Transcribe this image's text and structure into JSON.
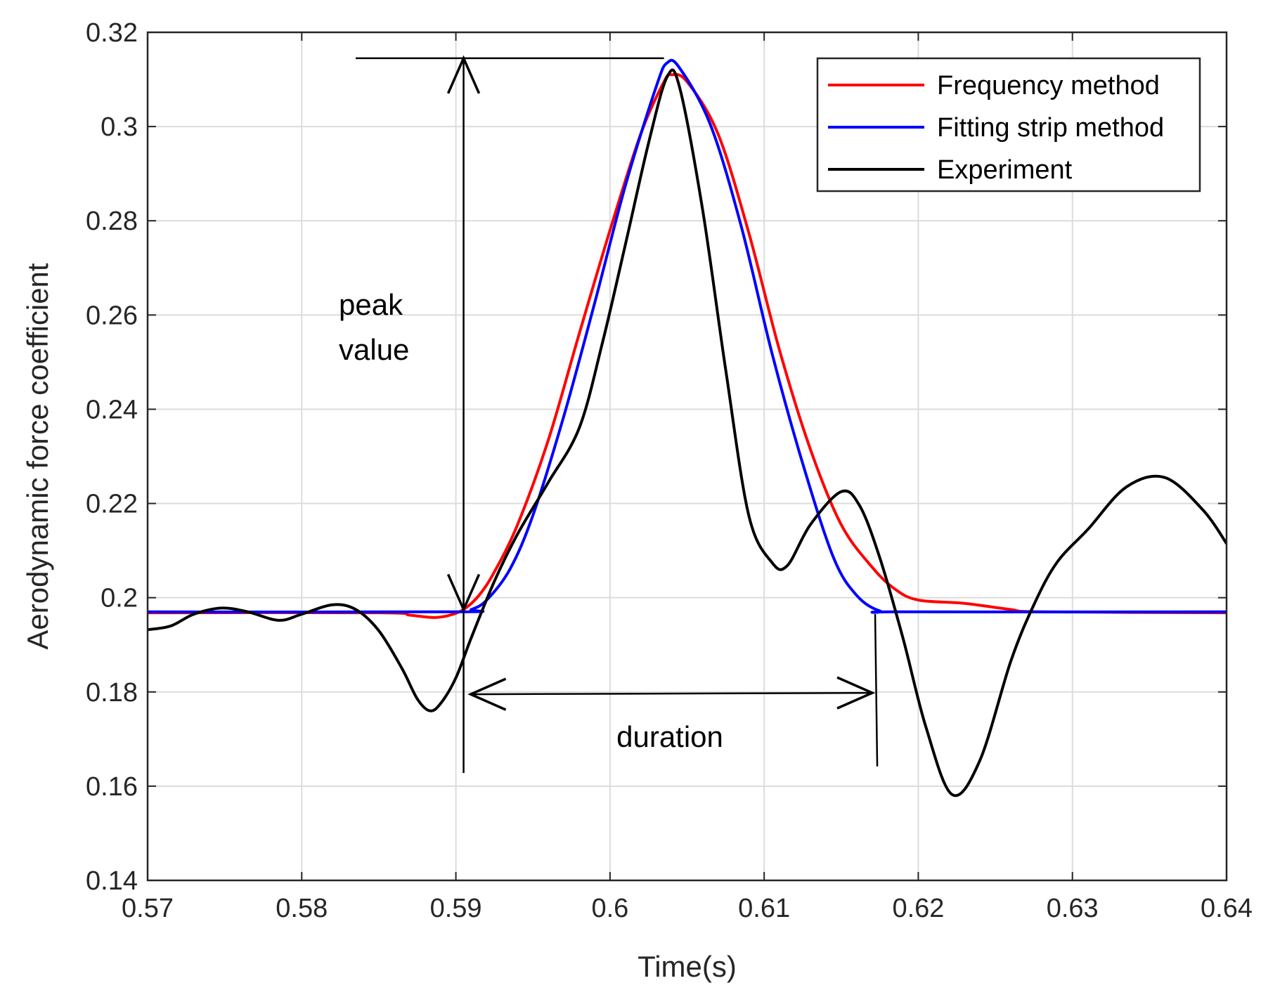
{
  "chart_data": {
    "type": "line",
    "xlabel": "Time(s)",
    "ylabel": "Aerodynamic force coefficient",
    "xlim": [
      0.57,
      0.64
    ],
    "ylim": [
      0.14,
      0.32
    ],
    "x_ticks": [
      0.57,
      0.58,
      0.59,
      0.6,
      0.61,
      0.62,
      0.63,
      0.64
    ],
    "x_tick_labels": [
      "0.57",
      "0.58",
      "0.59",
      "0.6",
      "0.61",
      "0.62",
      "0.63",
      "0.64"
    ],
    "y_ticks": [
      0.14,
      0.16,
      0.18,
      0.2,
      0.22,
      0.24,
      0.26,
      0.28,
      0.3,
      0.32
    ],
    "y_tick_labels": [
      "0.14",
      "0.16",
      "0.18",
      "0.2",
      "0.22",
      "0.24",
      "0.26",
      "0.28",
      "0.3",
      "0.32"
    ],
    "grid": true,
    "legend_position": "top-right",
    "series": [
      {
        "name": "Frequency method",
        "color": "#ff0000",
        "points": [
          [
            0.57,
            0.1968
          ],
          [
            0.585,
            0.1968
          ],
          [
            0.587,
            0.1963
          ],
          [
            0.5885,
            0.1958
          ],
          [
            0.5895,
            0.1962
          ],
          [
            0.5905,
            0.1975
          ],
          [
            0.5915,
            0.2005
          ],
          [
            0.5925,
            0.2055
          ],
          [
            0.594,
            0.2155
          ],
          [
            0.596,
            0.2335
          ],
          [
            0.598,
            0.256
          ],
          [
            0.6,
            0.278
          ],
          [
            0.602,
            0.2985
          ],
          [
            0.6035,
            0.3095
          ],
          [
            0.604,
            0.311
          ],
          [
            0.605,
            0.3095
          ],
          [
            0.607,
            0.2985
          ],
          [
            0.609,
            0.2775
          ],
          [
            0.611,
            0.2525
          ],
          [
            0.613,
            0.2315
          ],
          [
            0.615,
            0.2155
          ],
          [
            0.617,
            0.2065
          ],
          [
            0.6185,
            0.2018
          ],
          [
            0.62,
            0.1995
          ],
          [
            0.623,
            0.1988
          ],
          [
            0.626,
            0.1975
          ],
          [
            0.628,
            0.197
          ],
          [
            0.64,
            0.1968
          ]
        ]
      },
      {
        "name": "Fitting strip method",
        "color": "#0000ff",
        "points": [
          [
            0.57,
            0.197
          ],
          [
            0.59,
            0.197
          ],
          [
            0.591,
            0.1975
          ],
          [
            0.592,
            0.1995
          ],
          [
            0.5935,
            0.206
          ],
          [
            0.595,
            0.2175
          ],
          [
            0.597,
            0.2385
          ],
          [
            0.599,
            0.2625
          ],
          [
            0.601,
            0.2875
          ],
          [
            0.603,
            0.3085
          ],
          [
            0.6037,
            0.3135
          ],
          [
            0.6045,
            0.3125
          ],
          [
            0.6065,
            0.3005
          ],
          [
            0.6085,
            0.279
          ],
          [
            0.6105,
            0.252
          ],
          [
            0.6125,
            0.2285
          ],
          [
            0.6145,
            0.2085
          ],
          [
            0.616,
            0.2005
          ],
          [
            0.6175,
            0.1972
          ],
          [
            0.619,
            0.197
          ],
          [
            0.64,
            0.197
          ]
        ]
      },
      {
        "name": "Experiment",
        "color": "#000000",
        "points": [
          [
            0.57,
            0.1932
          ],
          [
            0.5715,
            0.194
          ],
          [
            0.573,
            0.1965
          ],
          [
            0.5748,
            0.1978
          ],
          [
            0.5765,
            0.197
          ],
          [
            0.5785,
            0.1952
          ],
          [
            0.58,
            0.1965
          ],
          [
            0.582,
            0.1985
          ],
          [
            0.5835,
            0.1975
          ],
          [
            0.585,
            0.193
          ],
          [
            0.5865,
            0.185
          ],
          [
            0.5875,
            0.1785
          ],
          [
            0.5883,
            0.176
          ],
          [
            0.589,
            0.1775
          ],
          [
            0.59,
            0.183
          ],
          [
            0.591,
            0.1915
          ],
          [
            0.5925,
            0.2035
          ],
          [
            0.594,
            0.2135
          ],
          [
            0.596,
            0.2245
          ],
          [
            0.598,
            0.236
          ],
          [
            0.5995,
            0.254
          ],
          [
            0.601,
            0.275
          ],
          [
            0.6025,
            0.2965
          ],
          [
            0.6037,
            0.3105
          ],
          [
            0.6045,
            0.3085
          ],
          [
            0.606,
            0.2825
          ],
          [
            0.6075,
            0.2485
          ],
          [
            0.609,
            0.2175
          ],
          [
            0.6105,
            0.2075
          ],
          [
            0.6115,
            0.2068
          ],
          [
            0.613,
            0.2155
          ],
          [
            0.615,
            0.2225
          ],
          [
            0.6162,
            0.2195
          ],
          [
            0.6175,
            0.2085
          ],
          [
            0.619,
            0.1915
          ],
          [
            0.6205,
            0.1725
          ],
          [
            0.6222,
            0.1582
          ],
          [
            0.624,
            0.1655
          ],
          [
            0.626,
            0.1865
          ],
          [
            0.6275,
            0.1985
          ],
          [
            0.629,
            0.2075
          ],
          [
            0.631,
            0.2145
          ],
          [
            0.6335,
            0.2235
          ],
          [
            0.636,
            0.2255
          ],
          [
            0.6385,
            0.2185
          ],
          [
            0.64,
            0.2115
          ]
        ]
      }
    ],
    "annotations": {
      "peak_label_line1": "peak",
      "peak_label_line2": "value",
      "duration_label": "duration",
      "peak_ref_x_start": 0.5835,
      "peak_ref_x_end": 0.6035,
      "peak_ref_y": 0.3145,
      "peak_arrow_x": 0.5905,
      "peak_arrow_y_top": 0.3145,
      "peak_arrow_y_bottom": 0.1975,
      "left_vline_x": 0.5905,
      "left_vline_y_top": 0.2005,
      "left_vline_y_bottom": 0.1628,
      "right_vline_x": 0.6172,
      "right_vline_y_top": 0.1965,
      "right_vline_y_bottom": 0.1642,
      "duration_arrow_y": 0.1795,
      "duration_arrow_x_start": 0.5905,
      "duration_arrow_x_end": 0.6172
    }
  }
}
